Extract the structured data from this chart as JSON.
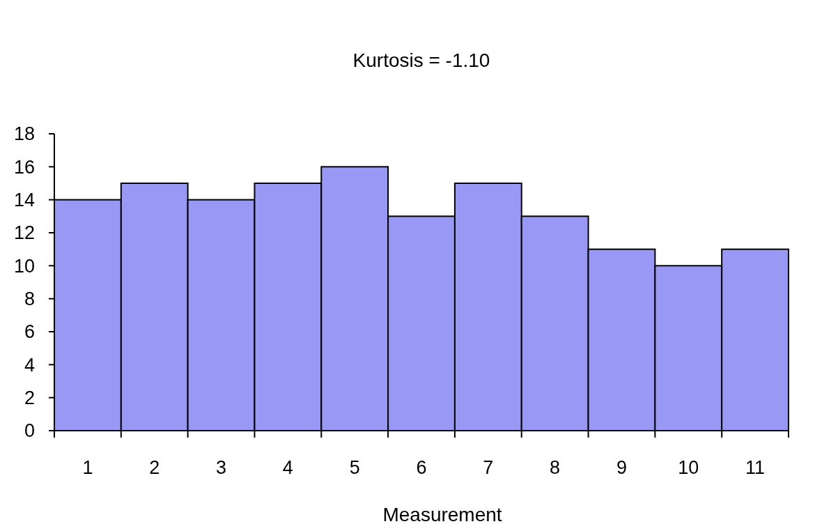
{
  "chart_data": {
    "type": "bar",
    "title": "Kurtosis = -1.10",
    "xlabel": "Measurement",
    "categories": [
      "1",
      "2",
      "3",
      "4",
      "5",
      "6",
      "7",
      "8",
      "9",
      "10",
      "11"
    ],
    "values": [
      14,
      15,
      14,
      15,
      16,
      13,
      15,
      13,
      11,
      10,
      11
    ],
    "color": "#9999f5",
    "ylim": [
      0,
      18
    ],
    "yticks": [
      0,
      2,
      4,
      6,
      8,
      10,
      12,
      14,
      16,
      18
    ],
    "grid": false
  }
}
